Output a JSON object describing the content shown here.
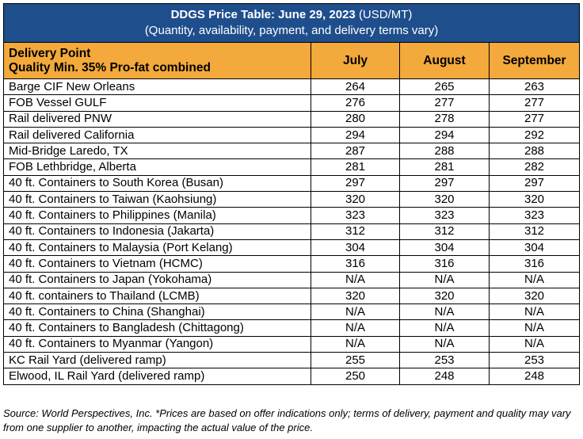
{
  "title": {
    "main": "DDGS Price Table: June 29, 2023",
    "unit": "(USD/MT)",
    "subtitle": "(Quantity, availability, payment, and delivery terms vary)"
  },
  "header": {
    "line1": "Delivery Point",
    "line2": "Quality Min. 35% Pro-fat combined",
    "months": [
      "July",
      "August",
      "September"
    ]
  },
  "rows": [
    {
      "name": "Barge CIF New Orleans",
      "july": "264",
      "august": "265",
      "september": "263"
    },
    {
      "name": "FOB Vessel GULF",
      "july": "276",
      "august": "277",
      "september": "277"
    },
    {
      "name": "Rail delivered PNW",
      "july": "280",
      "august": "278",
      "september": "277"
    },
    {
      "name": "Rail delivered California",
      "july": "294",
      "august": "294",
      "september": "292"
    },
    {
      "name": "Mid-Bridge Laredo, TX",
      "july": "287",
      "august": "288",
      "september": "288"
    },
    {
      "name": "FOB Lethbridge, Alberta",
      "july": "281",
      "august": "281",
      "september": "282"
    },
    {
      "name": "40 ft. Containers to South Korea (Busan)",
      "july": "297",
      "august": "297",
      "september": "297"
    },
    {
      "name": "40 ft. Containers to Taiwan (Kaohsiung)",
      "july": "320",
      "august": "320",
      "september": "320"
    },
    {
      "name": "40 ft. Containers to Philippines (Manila)",
      "july": "323",
      "august": "323",
      "september": "323"
    },
    {
      "name": "40 ft. Containers to Indonesia (Jakarta)",
      "july": "312",
      "august": "312",
      "september": "312"
    },
    {
      "name": "40 ft. Containers to Malaysia (Port Kelang)",
      "july": "304",
      "august": "304",
      "september": "304"
    },
    {
      "name": "40 ft. Containers to Vietnam (HCMC)",
      "july": "316",
      "august": "316",
      "september": "316"
    },
    {
      "name": "40 ft. Containers to Japan (Yokohama)",
      "july": "N/A",
      "august": "N/A",
      "september": "N/A"
    },
    {
      "name": "40 ft. containers to Thailand (LCMB)",
      "july": "320",
      "august": "320",
      "september": "320"
    },
    {
      "name": "40 ft. Containers to China (Shanghai)",
      "july": "N/A",
      "august": "N/A",
      "september": "N/A"
    },
    {
      "name": "40 ft. Containers to Bangladesh (Chittagong)",
      "july": "N/A",
      "august": "N/A",
      "september": "N/A"
    },
    {
      "name": "40 ft. Containers to Myanmar (Yangon)",
      "july": "N/A",
      "august": "N/A",
      "september": "N/A"
    },
    {
      "name": "KC Rail Yard (delivered ramp)",
      "july": "255",
      "august": "253",
      "september": "253"
    },
    {
      "name": "Elwood, IL Rail Yard (delivered ramp)",
      "july": "250",
      "august": "248",
      "september": "248"
    }
  ],
  "source_note": "Source: World Perspectives, Inc. *Prices are based on offer indications only; terms of delivery, payment and quality may vary from one supplier to another, impacting the actual value of the price.",
  "colors": {
    "title_bg": "#1f4e8c",
    "header_bg": "#f3a93b"
  }
}
